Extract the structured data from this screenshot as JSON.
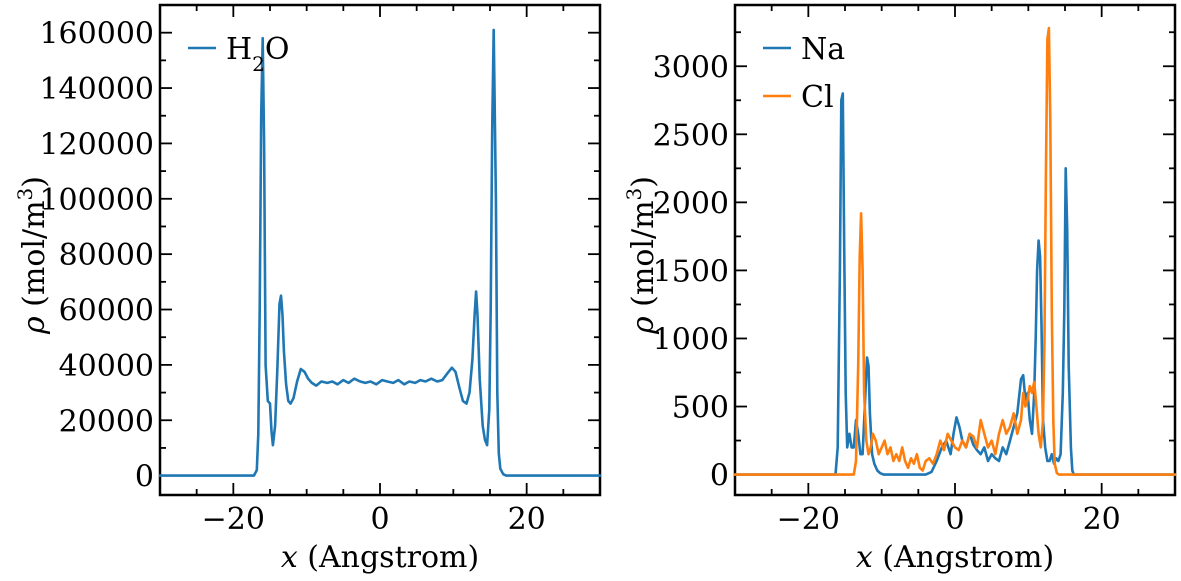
{
  "chart_data": [
    {
      "type": "line",
      "xlabel_var": "x",
      "xlabel_unit": "(Angstrom)",
      "ylabel_var": "ρ",
      "ylabel_unit": "(mol/m",
      "ylabel_exp": "3",
      "ylabel_close": ")",
      "xlim": [
        -30,
        30
      ],
      "ylim": [
        -7000,
        170000
      ],
      "xticks": [
        -20,
        0,
        20
      ],
      "xtick_labels": [
        "−20",
        "0",
        "20"
      ],
      "yticks": [
        0,
        20000,
        40000,
        60000,
        80000,
        100000,
        120000,
        140000,
        160000
      ],
      "ytick_labels": [
        "0",
        "20000",
        "40000",
        "60000",
        "80000",
        "100000",
        "120000",
        "140000",
        "160000"
      ],
      "legend_position": "top-left",
      "series": [
        {
          "legend_main": "H",
          "legend_sub": "2",
          "legend_tail": "O",
          "color": "#1f77b4",
          "x": [
            -30,
            -17.2,
            -16.8,
            -16.6,
            -16.4,
            -16.2,
            -16.0,
            -15.8,
            -15.6,
            -15.3,
            -15.0,
            -14.8,
            -14.6,
            -14.3,
            -14.0,
            -13.7,
            -13.5,
            -13.3,
            -13.1,
            -12.8,
            -12.5,
            -12.2,
            -11.8,
            -11.3,
            -10.8,
            -10.3,
            -9.8,
            -9.3,
            -8.7,
            -8.0,
            -7.2,
            -6.5,
            -5.8,
            -5.0,
            -4.3,
            -3.5,
            -2.7,
            -2.0,
            -1.3,
            -0.5,
            0.3,
            1.0,
            1.8,
            2.5,
            3.3,
            4.0,
            4.8,
            5.5,
            6.2,
            7.0,
            7.8,
            8.5,
            9.2,
            9.8,
            10.3,
            10.8,
            11.3,
            11.8,
            12.2,
            12.6,
            12.9,
            13.1,
            13.3,
            13.6,
            14.0,
            14.3,
            14.6,
            14.9,
            15.1,
            15.3,
            15.5,
            15.8,
            16.0,
            16.2,
            16.4,
            16.8,
            17.2,
            30
          ],
          "values": [
            0,
            0,
            2000,
            15000,
            60000,
            130000,
            158000,
            120000,
            40000,
            27000,
            26000,
            16000,
            11000,
            18000,
            38000,
            62000,
            65000,
            58000,
            45000,
            33000,
            27000,
            26000,
            28000,
            34000,
            38500,
            37500,
            35000,
            33500,
            32500,
            34000,
            33500,
            34000,
            33000,
            34500,
            33500,
            35000,
            34000,
            33500,
            34000,
            33000,
            34500,
            34000,
            33500,
            34500,
            33000,
            34000,
            33500,
            34500,
            34000,
            35000,
            34000,
            34500,
            37000,
            39000,
            37500,
            32000,
            27000,
            26000,
            30000,
            42000,
            58000,
            66500,
            58000,
            35000,
            18000,
            13000,
            11000,
            24000,
            60000,
            125000,
            161000,
            100000,
            30000,
            8000,
            2500,
            500,
            0,
            0
          ]
        }
      ]
    },
    {
      "type": "line",
      "xlabel_var": "x",
      "xlabel_unit": "(Angstrom)",
      "ylabel_var": "ρ",
      "ylabel_unit": "(mol/m",
      "ylabel_exp": "3",
      "ylabel_close": ")",
      "xlim": [
        -30,
        30
      ],
      "ylim": [
        -150,
        3450
      ],
      "xticks": [
        -20,
        0,
        20
      ],
      "xtick_labels": [
        "−20",
        "0",
        "20"
      ],
      "yticks": [
        0,
        500,
        1000,
        1500,
        2000,
        2500,
        3000
      ],
      "ytick_labels": [
        "0",
        "500",
        "1000",
        "1500",
        "2000",
        "2500",
        "3000"
      ],
      "legend_position": "top-left",
      "series": [
        {
          "legend_main": "Na",
          "color": "#1f77b4",
          "x": [
            -30,
            -16.3,
            -16.0,
            -15.7,
            -15.5,
            -15.3,
            -15.1,
            -14.9,
            -14.7,
            -14.4,
            -14.1,
            -13.8,
            -13.5,
            -13.2,
            -12.9,
            -12.6,
            -12.3,
            -12.0,
            -11.8,
            -11.6,
            -11.3,
            -11.0,
            -10.6,
            -10.2,
            -9.7,
            -9.2,
            -8.6,
            -8.0,
            -7.2,
            -6.4,
            -5.6,
            -4.8,
            -4.0,
            -3.2,
            -2.5,
            -1.8,
            -1.2,
            -0.6,
            -0.2,
            0.2,
            0.6,
            1.0,
            1.5,
            2.0,
            2.5,
            3.0,
            3.5,
            4.0,
            4.5,
            5.0,
            5.5,
            6.0,
            6.5,
            7.0,
            7.5,
            8.0,
            8.5,
            9.0,
            9.3,
            9.6,
            9.9,
            10.2,
            10.5,
            10.8,
            11.0,
            11.2,
            11.4,
            11.6,
            11.8,
            12.0,
            12.3,
            12.6,
            12.9,
            13.2,
            13.5,
            13.8,
            14.1,
            14.4,
            14.7,
            14.9,
            15.1,
            15.3,
            15.5,
            15.8,
            16.0,
            16.2,
            30
          ],
          "values": [
            0,
            0,
            200,
            1500,
            2750,
            2800,
            1600,
            600,
            200,
            300,
            200,
            200,
            400,
            300,
            150,
            150,
            500,
            860,
            800,
            450,
            150,
            80,
            30,
            10,
            0,
            0,
            0,
            0,
            0,
            0,
            0,
            0,
            0,
            20,
            100,
            200,
            250,
            150,
            300,
            420,
            350,
            250,
            200,
            300,
            220,
            180,
            150,
            200,
            100,
            150,
            120,
            100,
            200,
            150,
            250,
            350,
            450,
            700,
            730,
            550,
            600,
            400,
            300,
            600,
            1000,
            1500,
            1720,
            1600,
            1100,
            400,
            200,
            100,
            100,
            150,
            80,
            120,
            100,
            150,
            600,
            1200,
            2250,
            1800,
            800,
            200,
            30,
            0,
            0
          ]
        },
        {
          "legend_main": "Cl",
          "color": "#ff7f0e",
          "x": [
            -30,
            -13.8,
            -13.5,
            -13.2,
            -13.0,
            -12.8,
            -12.6,
            -12.4,
            -12.1,
            -11.8,
            -11.5,
            -11.2,
            -10.8,
            -10.4,
            -10.0,
            -9.6,
            -9.2,
            -8.8,
            -8.4,
            -8.0,
            -7.6,
            -7.2,
            -6.8,
            -6.4,
            -6.0,
            -5.6,
            -5.2,
            -4.8,
            -4.4,
            -4.0,
            -3.5,
            -3.0,
            -2.5,
            -2.0,
            -1.5,
            -1.0,
            -0.5,
            0.0,
            0.5,
            1.0,
            1.5,
            2.0,
            2.5,
            3.0,
            3.5,
            4.0,
            4.5,
            5.0,
            5.5,
            6.0,
            6.5,
            7.0,
            7.5,
            8.0,
            8.5,
            9.0,
            9.3,
            9.6,
            9.9,
            10.2,
            10.5,
            10.8,
            11.1,
            11.4,
            11.7,
            12.0,
            12.2,
            12.4,
            12.6,
            12.8,
            13.0,
            13.2,
            13.4,
            13.6,
            13.9,
            14.2,
            30
          ],
          "values": [
            0,
            0,
            100,
            800,
            1600,
            1920,
            1500,
            600,
            250,
            150,
            200,
            300,
            250,
            150,
            200,
            250,
            150,
            200,
            100,
            150,
            100,
            200,
            100,
            50,
            120,
            80,
            150,
            50,
            30,
            100,
            120,
            80,
            150,
            250,
            180,
            300,
            250,
            200,
            180,
            250,
            200,
            300,
            280,
            200,
            400,
            300,
            200,
            250,
            150,
            300,
            400,
            300,
            350,
            450,
            300,
            400,
            600,
            500,
            550,
            650,
            600,
            680,
            500,
            300,
            200,
            400,
            1000,
            2200,
            3200,
            3280,
            2600,
            1200,
            400,
            80,
            10,
            0,
            0
          ]
        }
      ]
    }
  ]
}
